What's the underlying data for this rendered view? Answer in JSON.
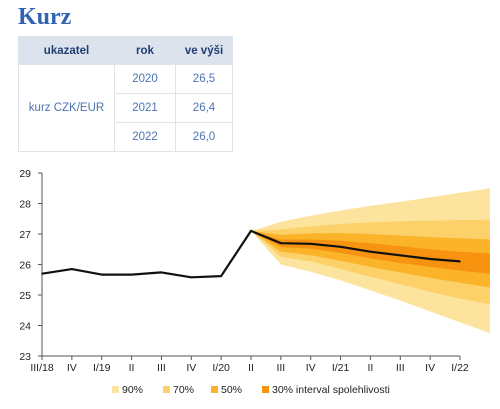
{
  "page": {
    "title": "Kurz"
  },
  "table": {
    "headers": [
      "ukazatel",
      "rok",
      "ve výši"
    ],
    "indicator": "kurz CZK/EUR",
    "rows": [
      {
        "year": "2020",
        "value": "26,5"
      },
      {
        "year": "2021",
        "value": "26,4"
      },
      {
        "year": "2022",
        "value": "26,0"
      }
    ]
  },
  "chart_data": {
    "type": "area",
    "title": "",
    "xlabel": "",
    "ylabel": "",
    "ylim": [
      23,
      29
    ],
    "yticks": [
      23,
      24,
      25,
      26,
      27,
      28,
      29
    ],
    "x": [
      "III/18",
      "IV",
      "I/19",
      "II",
      "III",
      "IV",
      "I/20",
      "II",
      "III",
      "IV",
      "I/21",
      "II",
      "III",
      "IV",
      "I/22"
    ],
    "grid": false,
    "legend_position": "bottom",
    "series": [
      {
        "values": [
          25.7,
          25.85,
          25.67,
          25.67,
          25.74,
          25.58,
          25.62,
          27.1,
          26.7,
          26.68,
          26.58,
          26.42,
          26.3,
          26.18,
          26.1
        ]
      }
    ],
    "fan": {
      "start_index": 7,
      "bands": [
        {
          "name": "90%",
          "color": "#fde49e",
          "upper": [
            27.1,
            27.4,
            27.6,
            27.77,
            27.92,
            28.06,
            28.2,
            28.35,
            28.5
          ],
          "lower": [
            27.1,
            26.0,
            25.76,
            25.48,
            25.15,
            24.82,
            24.46,
            24.1,
            23.75
          ]
        },
        {
          "name": "70%",
          "color": "#fcd16a",
          "upper": [
            27.1,
            27.15,
            27.25,
            27.33,
            27.38,
            27.42,
            27.44,
            27.46,
            27.47
          ],
          "lower": [
            27.1,
            26.25,
            26.1,
            25.85,
            25.6,
            25.35,
            25.1,
            24.88,
            24.7
          ]
        },
        {
          "name": "50%",
          "color": "#fbb32a",
          "upper": [
            27.1,
            26.97,
            27.02,
            27.03,
            27.0,
            26.95,
            26.9,
            26.86,
            26.82
          ],
          "lower": [
            27.1,
            26.42,
            26.3,
            26.12,
            25.92,
            25.74,
            25.56,
            25.4,
            25.25
          ]
        },
        {
          "name": "30% interval spolehlivosti",
          "color": "#f7930e",
          "upper": [
            27.1,
            26.82,
            26.82,
            26.78,
            26.7,
            26.6,
            26.5,
            26.42,
            26.36
          ],
          "lower": [
            27.1,
            26.57,
            26.52,
            26.38,
            26.2,
            26.05,
            25.92,
            25.8,
            25.7
          ]
        }
      ]
    }
  }
}
